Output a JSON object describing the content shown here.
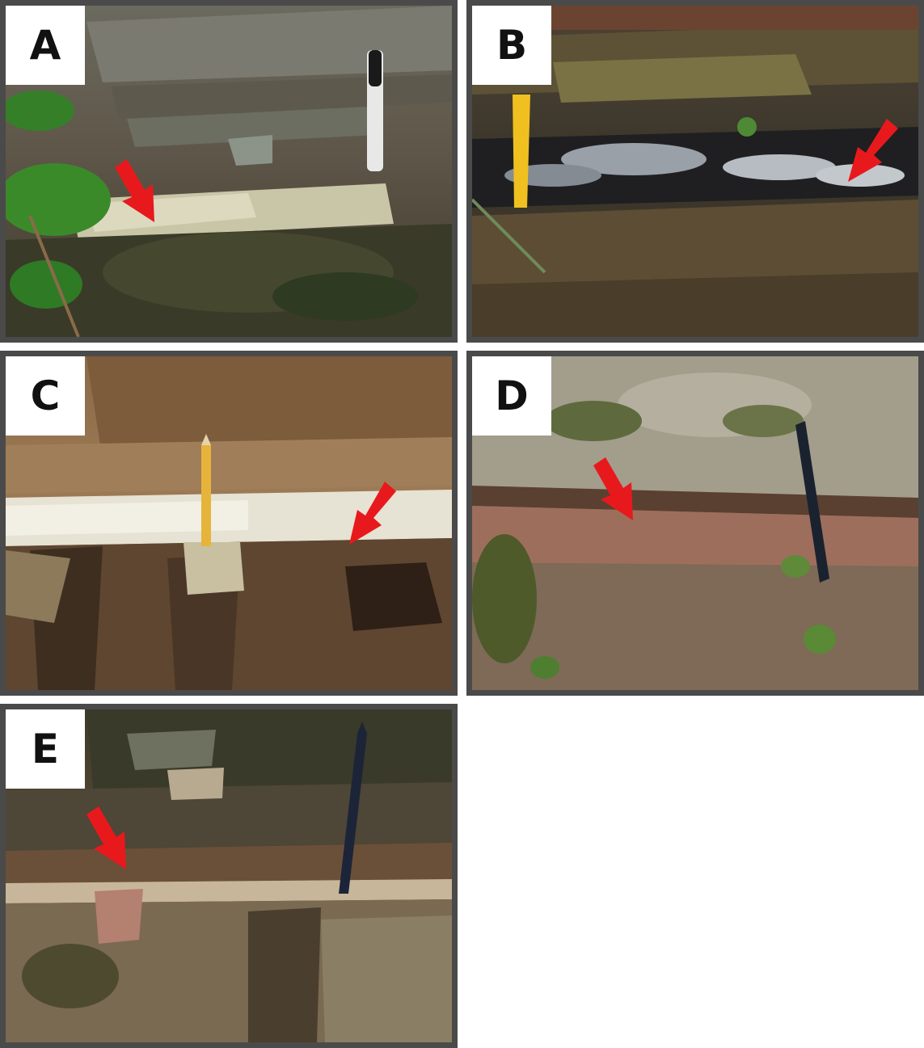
{
  "panels": [
    {
      "label": "A"
    },
    {
      "label": "B"
    },
    {
      "label": "C"
    },
    {
      "label": "D"
    },
    {
      "label": "E"
    }
  ],
  "colors": {
    "frame": "#4a4a4a",
    "label_background": "#ffffff",
    "label_text": "#111111",
    "arrow": "#e8191c"
  }
}
